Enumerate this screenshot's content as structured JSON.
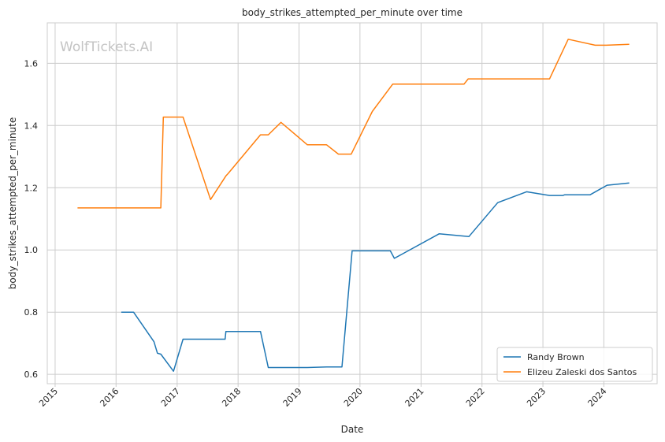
{
  "chart_data": {
    "type": "line",
    "title": "body_strikes_attempted_per_minute over time",
    "xlabel": "Date",
    "ylabel": "body_strikes_attempted_per_minute",
    "watermark": "WolfTickets.AI",
    "x_type": "date",
    "xlim": [
      "2014-11-15",
      "2024-11-15"
    ],
    "ylim": [
      0.57,
      1.73
    ],
    "x_ticks": [
      "2015",
      "2016",
      "2017",
      "2018",
      "2019",
      "2020",
      "2021",
      "2022",
      "2023",
      "2024"
    ],
    "y_ticks": [
      0.6,
      0.8,
      1.0,
      1.2,
      1.4,
      1.6
    ],
    "grid": true,
    "legend_position": "lower-right",
    "series": [
      {
        "name": "Randy Brown",
        "color": "#1f77b4",
        "x": [
          "2016-02-01",
          "2016-04-15",
          "2016-08-15",
          "2016-09-05",
          "2016-09-25",
          "2016-12-10",
          "2017-02-05",
          "2017-10-15",
          "2017-10-20",
          "2018-05-15",
          "2018-07-01",
          "2019-02-20",
          "2019-06-15",
          "2019-09-15",
          "2019-11-15",
          "2020-07-01",
          "2020-07-25",
          "2021-04-20",
          "2021-10-15",
          "2022-04-05",
          "2022-09-25",
          "2023-02-10",
          "2023-05-01",
          "2023-05-10",
          "2023-10-10",
          "2024-01-20",
          "2024-06-01"
        ],
        "y": [
          0.8,
          0.8,
          0.705,
          0.668,
          0.665,
          0.61,
          0.713,
          0.713,
          0.738,
          0.738,
          0.622,
          0.622,
          0.624,
          0.624,
          0.997,
          0.997,
          0.973,
          1.052,
          1.043,
          1.152,
          1.187,
          1.175,
          1.175,
          1.177,
          1.177,
          1.208,
          1.215
        ]
      },
      {
        "name": "Elizeu Zaleski dos Santos",
        "color": "#ff7f0e",
        "x": [
          "2015-05-15",
          "2016-09-25",
          "2016-10-10",
          "2017-02-05",
          "2017-07-20",
          "2017-10-20",
          "2017-11-01",
          "2018-05-15",
          "2018-07-01",
          "2018-09-15",
          "2019-02-20",
          "2019-06-15",
          "2019-08-25",
          "2019-11-10",
          "2020-03-15",
          "2020-07-15",
          "2021-09-15",
          "2021-10-10",
          "2023-02-10",
          "2023-06-01",
          "2023-06-20",
          "2023-11-10",
          "2024-01-15",
          "2024-06-01"
        ],
        "y": [
          1.135,
          1.135,
          1.427,
          1.427,
          1.162,
          1.238,
          1.245,
          1.37,
          1.37,
          1.41,
          1.338,
          1.338,
          1.308,
          1.308,
          1.445,
          1.533,
          1.533,
          1.55,
          1.55,
          1.677,
          1.675,
          1.658,
          1.658,
          1.661
        ]
      }
    ]
  }
}
